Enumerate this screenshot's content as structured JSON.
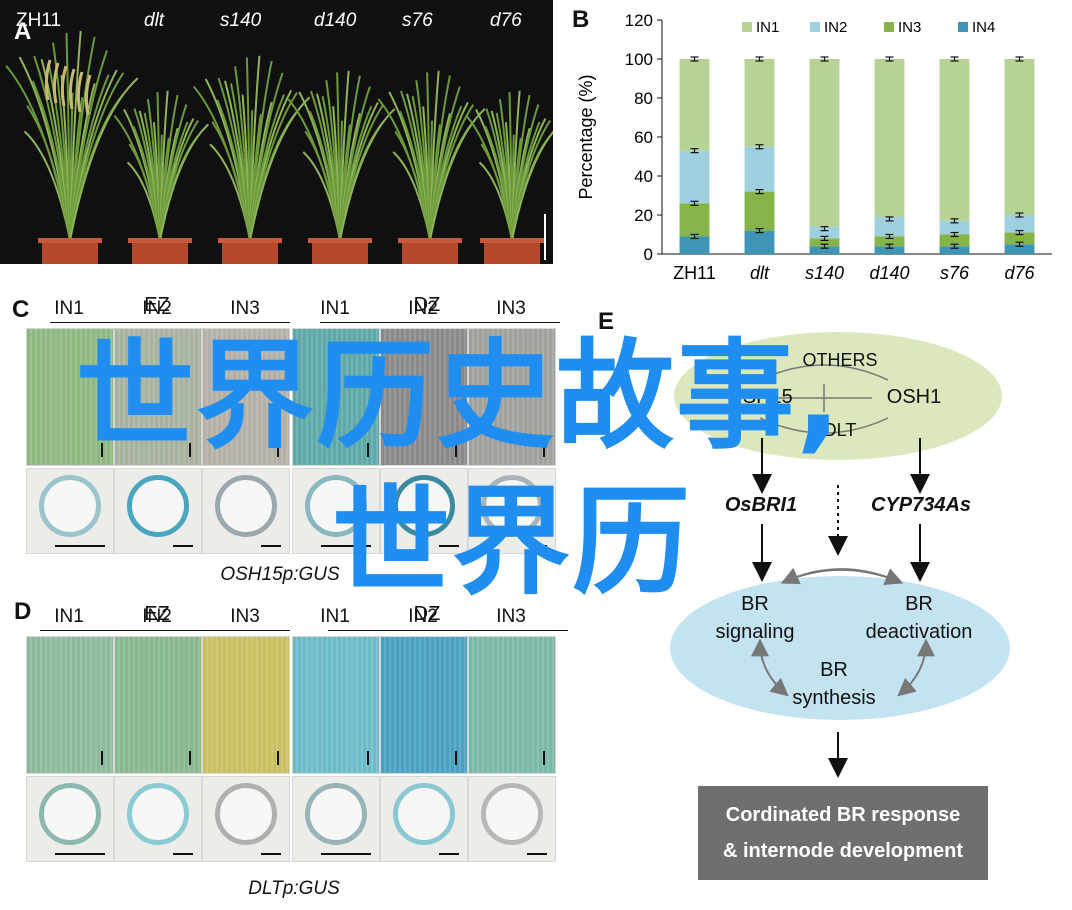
{
  "panel_labels": {
    "a": "A",
    "b": "B",
    "c": "C",
    "d": "D",
    "e": "E"
  },
  "genotypes": [
    "ZH11",
    "dlt",
    "s140",
    "d140",
    "s76",
    "d76"
  ],
  "chart_data": {
    "type": "bar",
    "stacked": true,
    "categories": [
      "ZH11",
      "dlt",
      "s140",
      "d140",
      "s76",
      "d76"
    ],
    "series": [
      {
        "name": "IN1",
        "color": "#b6d395",
        "values": [
          47,
          45,
          86,
          81,
          83,
          80
        ]
      },
      {
        "name": "IN2",
        "color": "#9fd0e0",
        "values": [
          27,
          23,
          6,
          10,
          7,
          9
        ]
      },
      {
        "name": "IN3",
        "color": "#86b448",
        "values": [
          17,
          20,
          4,
          5,
          6,
          6
        ]
      },
      {
        "name": "IN4",
        "color": "#3f95b5",
        "values": [
          9,
          12,
          4,
          4,
          4,
          5
        ]
      }
    ],
    "error_tops": [
      [
        100,
        53,
        26,
        9
      ],
      [
        100,
        55,
        32,
        12
      ],
      [
        100,
        13,
        8,
        4
      ],
      [
        100,
        18,
        9,
        4
      ],
      [
        100,
        17,
        10,
        4
      ],
      [
        100,
        20,
        11,
        5
      ]
    ],
    "ylabel": "Percentage (%)",
    "ylim": [
      0,
      120
    ],
    "yticks": [
      0,
      20,
      40,
      60,
      80,
      100,
      120
    ],
    "legend_position": "top"
  },
  "panelC": {
    "groups": [
      "EZ",
      "DZ"
    ],
    "columns": [
      "IN1",
      "IN2",
      "IN3",
      "IN1",
      "IN2",
      "IN3"
    ],
    "caption": "OSH15p:GUS"
  },
  "panelD": {
    "groups": [
      "EZ",
      "DZ"
    ],
    "columns": [
      "IN1",
      "IN2",
      "IN3",
      "IN1",
      "IN2",
      "IN3"
    ],
    "caption": "DLTp:GUS"
  },
  "panelE": {
    "others": "OTHERS",
    "osh15": "OSH15",
    "osh1": "OSH1",
    "dlt": "DLT",
    "osbri1": "OsBRI1",
    "cyp": "CYP734As",
    "br_signaling_1": "BR",
    "br_signaling_2": "signaling",
    "br_deact_1": "BR",
    "br_deact_2": "deactivation",
    "br_syn_1": "BR",
    "br_syn_2": "synthesis",
    "box_line1": "Cordinated BR response",
    "box_line2": "& internode development"
  },
  "watermark": {
    "line1": "世界历史故事,",
    "line2": "世界历"
  },
  "colors": {
    "green_ellipse": "#dbe7bd",
    "blue_ellipse": "#c4e3f0",
    "box": "#6f6f6f",
    "watermark": "#1f8ef0"
  }
}
